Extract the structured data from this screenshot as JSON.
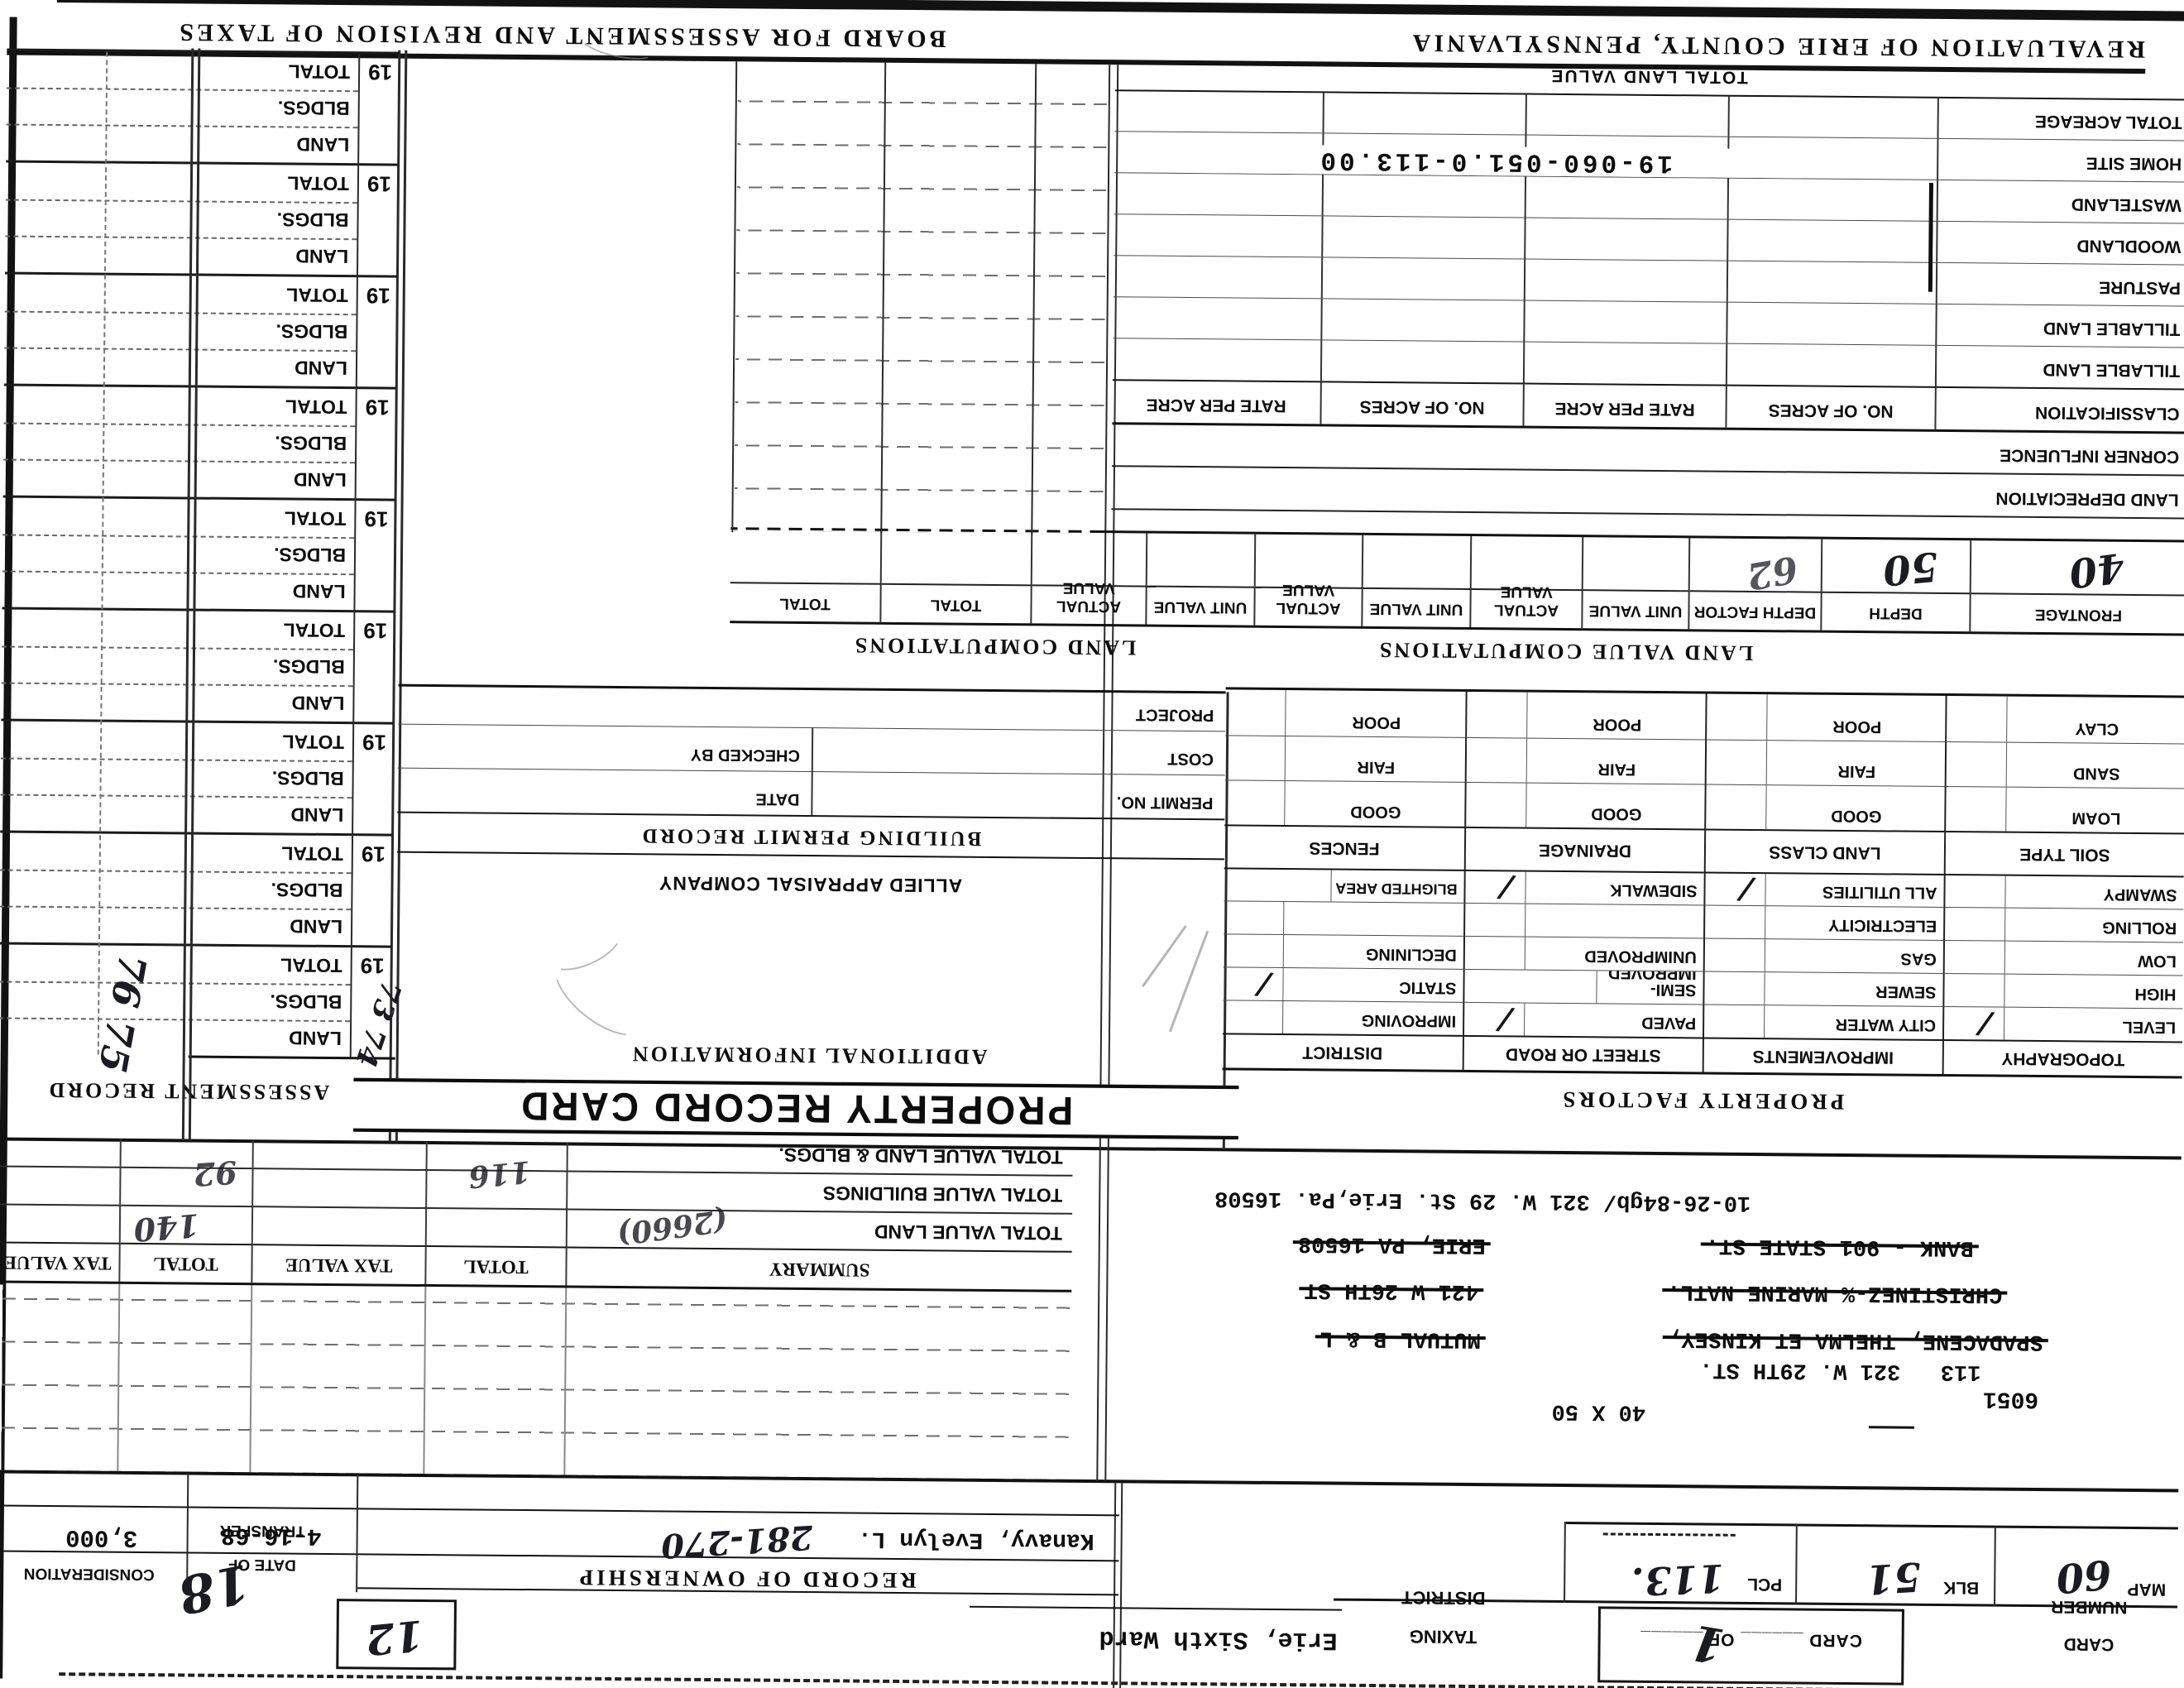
{
  "banner": {
    "revaluation": "REVALUATION OF ERIE COUNTY, PENNSYLVANIA",
    "board": "BOARD FOR ASSESSMENT AND REVISION OF TAXES"
  },
  "title": "PROPERTY RECORD CARD",
  "card": {
    "number_label_line1": "CARD",
    "number_label_line2": "NUMBER",
    "number_value": "1",
    "card_of": "CARD ______ OF ______",
    "taxing_line1": "TAXING",
    "taxing_line2": "DISTRICT",
    "district": "Erie, Sixth Ward",
    "map_label": "MAP",
    "map_value": "60",
    "blk_label": "BLK",
    "blk_value": "51",
    "pcl_label": "PCL",
    "pcl_value": "113.",
    "stamp": "12",
    "margin_note": "18"
  },
  "ownership": {
    "title": "RECORD OF OWNERSHIP",
    "owner": "Kanavy, Evelyn L.",
    "deed_book_page": "281-270",
    "date_label_line1": "DATE OF",
    "date_label_line2": "TRANSFER",
    "date_value": "4-16-68",
    "consideration_label": "CONSIDERATION",
    "consideration_value": "3,000",
    "history": [
      {
        "name": "SPADACENE, THELMA ET KINSEY,",
        "addr": "MUTUAL B & L"
      },
      {
        "name": "CHRISTINEZ-% MARINE NATL.",
        "addr": "421 W 26TH ST"
      },
      {
        "name": "BANK - 901 STATE ST.",
        "addr": "ERIE, PA 16508"
      },
      {
        "name": "10-26-84gb/ 321 W. 29 St. Erie,Pa. 16508",
        "addr": ""
      }
    ],
    "parcel_stamp": "6051",
    "parcel_line": "113   321 W. 29TH ST.",
    "lot_size": "40 X 50"
  },
  "summary": {
    "headers": [
      "SUMMARY",
      "TOTAL",
      "TAX VALUE",
      "TOTAL",
      "TAX VALUE"
    ],
    "rows": [
      {
        "label": "TOTAL VALUE LAND",
        "hw_tax": "140"
      },
      {
        "label": "TOTAL VALUE BUILDINGS",
        "hw_note": "(2660)"
      },
      {
        "label": "TOTAL VALUE LAND & BLDGS.",
        "hw_total": "116",
        "hw_tax": "92"
      }
    ]
  },
  "additional_information": {
    "title": "ADDITIONAL INFORMATION",
    "company": "ALLIED APPRAISAL COMPANY"
  },
  "property_factors": {
    "title": "PROPERTY FACTORS",
    "columns": [
      {
        "header": "TOPOGRAPHY",
        "items": [
          {
            "label": "LEVEL",
            "mark": "/"
          },
          {
            "label": "HIGH"
          },
          {
            "label": "LOW"
          },
          {
            "label": "ROLLING"
          },
          {
            "label": "SWAMPY"
          }
        ]
      },
      {
        "header": "IMPROVEMENTS",
        "items": [
          {
            "label": "CITY WATER"
          },
          {
            "label": "SEWER"
          },
          {
            "label": "GAS"
          },
          {
            "label": "ELECTRICITY"
          },
          {
            "label": "ALL UTILITIES",
            "mark": "/"
          }
        ]
      },
      {
        "header": "STREET OR ROAD",
        "items": [
          {
            "label": "PAVED",
            "mark": "/"
          },
          {
            "label": "SEMI-IMPROVED"
          },
          {
            "label": "UNIMPROVED"
          },
          {
            "label": ""
          },
          {
            "label": "SIDEWALK",
            "mark": "/"
          }
        ]
      },
      {
        "header": "DISTRICT",
        "items": [
          {
            "label": "IMPROVING"
          },
          {
            "label": "STATIC",
            "mark": "/"
          },
          {
            "label": "DECLINING"
          },
          {
            "label": ""
          },
          {
            "label": "BLIGHTED AREA"
          }
        ]
      }
    ]
  },
  "soil": {
    "headers": [
      "SOIL TYPE",
      "LAND CLASS",
      "DRAINAGE",
      "FENCES"
    ],
    "rows": [
      [
        "LOAM",
        "GOOD",
        "GOOD",
        "GOOD"
      ],
      [
        "SAND",
        "FAIR",
        "FAIR",
        "FAIR"
      ],
      [
        "CLAY",
        "POOR",
        "POOR",
        "POOR"
      ]
    ]
  },
  "building_permit": {
    "title": "BUILDING PERMIT RECORD",
    "permit_no": "PERMIT NO.",
    "date": "DATE",
    "cost": "COST",
    "checked_by": "CHECKED BY",
    "project": "PROJECT"
  },
  "land_value_computations": {
    "title": "LAND VALUE COMPUTATIONS",
    "side_title": "LAND COMPUTATIONS",
    "headers": [
      "FRONTAGE",
      "DEPTH",
      "DEPTH FACTOR",
      "UNIT VALUE",
      "ACTUAL VALUE",
      "UNIT VALUE",
      "ACTUAL VALUE",
      "UNIT VALUE",
      "ACTUAL VALUE",
      "TOTAL",
      "TOTAL"
    ],
    "values": {
      "frontage": "40",
      "depth": "50",
      "depth_factor": "62"
    }
  },
  "classification": {
    "pre_rows": [
      "LAND DEPRECIATION",
      "CORNER INFLUENCE"
    ],
    "headers": [
      "CLASSIFICATION",
      "NO. OF ACRES",
      "RATE PER ACRE",
      "NO. OF ACRES",
      "RATE PER ACRE"
    ],
    "rows": [
      "TILLABLE LAND",
      "TILLABLE LAND",
      "PASTURE",
      "WOODLAND",
      "WASTELAND",
      "HOME SITE",
      "TOTAL ACREAGE"
    ],
    "total_label": "TOTAL LAND VALUE"
  },
  "barcode": {
    "number": "19-060-051.0-113.00"
  },
  "assessment": {
    "title": "ASSESSMENT RECORD",
    "year_prefix": "19",
    "row_labels": [
      "LAND",
      "BLDGS.",
      "TOTAL"
    ],
    "block_count": 9,
    "hw_years": "73 74",
    "hw_side_years": "76 75"
  }
}
